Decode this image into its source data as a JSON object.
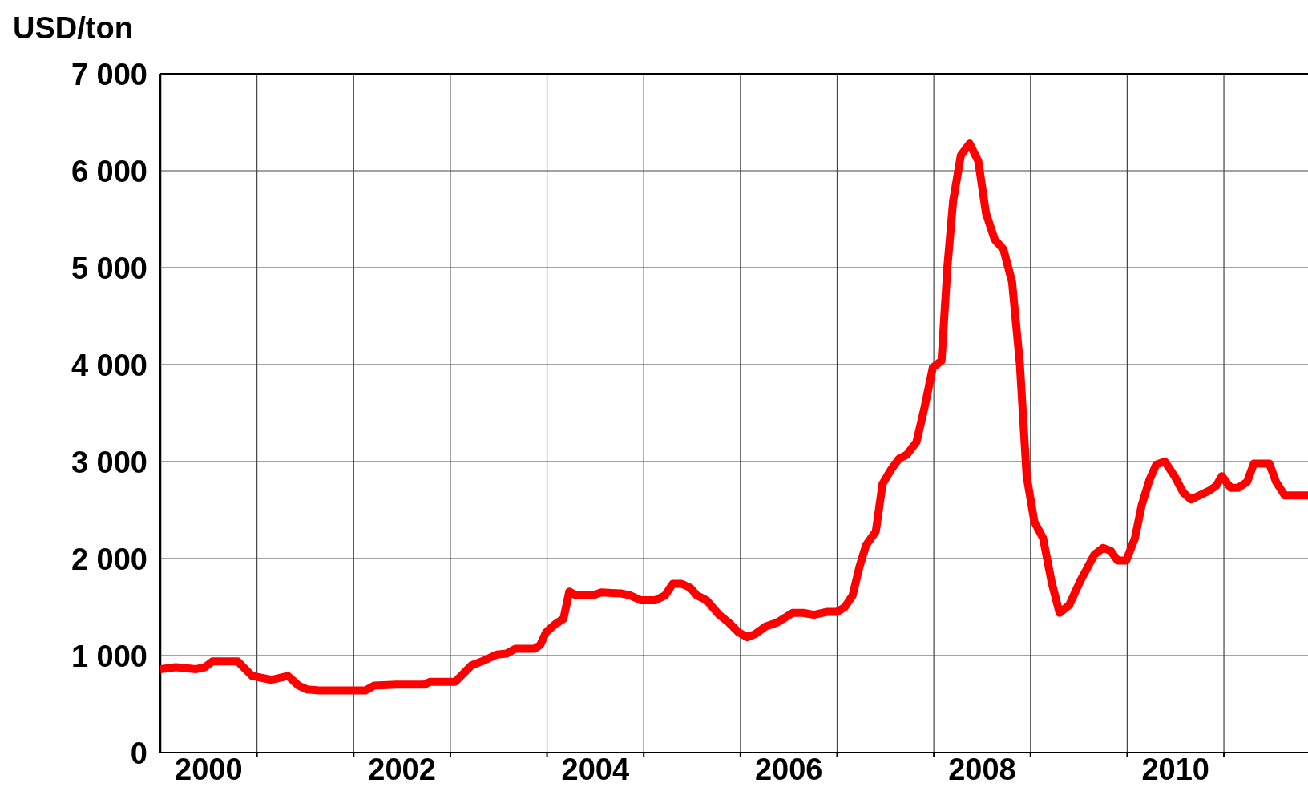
{
  "chart_data": {
    "type": "line",
    "ylabel": "USD/ton",
    "x": [
      2000.0,
      2000.16,
      2000.37,
      2000.46,
      2000.54,
      2000.8,
      2000.95,
      2001.15,
      2001.32,
      2001.43,
      2001.52,
      2001.64,
      2002.12,
      2002.21,
      2002.44,
      2002.73,
      2002.79,
      2003.05,
      2003.13,
      2003.22,
      2003.35,
      2003.48,
      2003.58,
      2003.67,
      2003.87,
      2003.93,
      2003.99,
      2004.08,
      2004.17,
      2004.23,
      2004.3,
      2004.47,
      2004.56,
      2004.77,
      2004.86,
      2004.97,
      2005.12,
      2005.22,
      2005.3,
      2005.39,
      2005.48,
      2005.55,
      2005.65,
      2005.78,
      2005.88,
      2005.98,
      2006.07,
      2006.15,
      2006.26,
      2006.38,
      2006.54,
      2006.65,
      2006.76,
      2006.89,
      2007.0,
      2007.08,
      2007.16,
      2007.23,
      2007.3,
      2007.4,
      2007.47,
      2007.56,
      2007.64,
      2007.72,
      2007.82,
      2007.9,
      2007.99,
      2008.08,
      2008.14,
      2008.2,
      2008.28,
      2008.37,
      2008.46,
      2008.54,
      2008.63,
      2008.72,
      2008.81,
      2008.89,
      2008.96,
      2009.04,
      2009.13,
      2009.22,
      2009.3,
      2009.4,
      2009.52,
      2009.58,
      2009.66,
      2009.75,
      2009.83,
      2009.9,
      2009.99,
      2010.08,
      2010.15,
      2010.23,
      2010.3,
      2010.39,
      2010.49,
      2010.58,
      2010.66,
      2010.85,
      2010.92,
      2010.98,
      2011.07,
      2011.15,
      2011.24,
      2011.31,
      2011.47,
      2011.54,
      2011.63,
      2011.87
    ],
    "series": [
      {
        "color": "#ff0000",
        "values": [
          860,
          880,
          860,
          880,
          940,
          940,
          790,
          750,
          790,
          690,
          650,
          640,
          640,
          690,
          700,
          700,
          730,
          730,
          810,
          900,
          950,
          1010,
          1020,
          1070,
          1070,
          1110,
          1240,
          1320,
          1380,
          1660,
          1620,
          1620,
          1650,
          1640,
          1620,
          1570,
          1570,
          1620,
          1740,
          1740,
          1700,
          1620,
          1570,
          1420,
          1340,
          1240,
          1190,
          1220,
          1300,
          1340,
          1440,
          1440,
          1420,
          1450,
          1450,
          1500,
          1620,
          1910,
          2140,
          2280,
          2770,
          2920,
          3030,
          3070,
          3200,
          3540,
          3970,
          4040,
          5000,
          5690,
          6160,
          6280,
          6100,
          5560,
          5290,
          5190,
          4850,
          4010,
          2850,
          2380,
          2210,
          1750,
          1440,
          1520,
          1780,
          1890,
          2040,
          2110,
          2080,
          1980,
          1980,
          2210,
          2550,
          2810,
          2970,
          3000,
          2850,
          2680,
          2610,
          2700,
          2750,
          2850,
          2730,
          2730,
          2790,
          2980,
          2980,
          2790,
          2650,
          2650
        ]
      }
    ],
    "xlim": [
      2000,
      2011.87
    ],
    "xticks": [
      {
        "value": 2000.5,
        "label": "2000"
      },
      {
        "value": 2001,
        "label": null
      },
      {
        "value": 2002,
        "label": null
      },
      {
        "value": 2002.5,
        "label": "2002"
      },
      {
        "value": 2003,
        "label": null
      },
      {
        "value": 2004,
        "label": null
      },
      {
        "value": 2004.5,
        "label": "2004"
      },
      {
        "value": 2005,
        "label": null
      },
      {
        "value": 2006,
        "label": null
      },
      {
        "value": 2006.5,
        "label": "2006"
      },
      {
        "value": 2007,
        "label": null
      },
      {
        "value": 2008,
        "label": null
      },
      {
        "value": 2008.5,
        "label": "2008"
      },
      {
        "value": 2009,
        "label": null
      },
      {
        "value": 2010,
        "label": null
      },
      {
        "value": 2010.5,
        "label": "2010"
      },
      {
        "value": 2011,
        "label": null
      }
    ],
    "ylim": [
      0,
      7000
    ],
    "yticks": [
      0,
      {
        "value": 1000,
        "label": "1 000"
      },
      {
        "value": 2000,
        "label": "2 000"
      },
      {
        "value": 3000,
        "label": "3 000"
      },
      {
        "value": 4000,
        "label": "4 000"
      },
      {
        "value": 5000,
        "label": "5 000"
      },
      {
        "value": 6000,
        "label": "6 000"
      },
      {
        "value": 7000,
        "label": "7 000"
      }
    ],
    "grid": true,
    "marker": "none",
    "line_style": "solid"
  }
}
